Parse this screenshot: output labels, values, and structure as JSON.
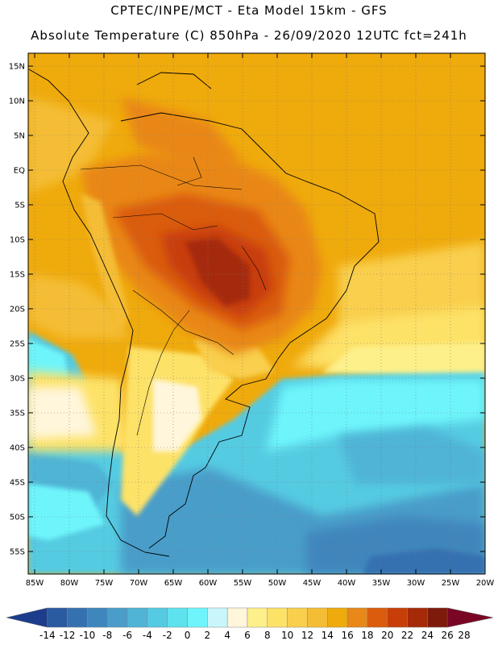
{
  "header": {
    "line1": "CPTEC/INPE/MCT -  Eta Model 15km - GFS",
    "line2": "Absolute Temperature (C) 850hPa - 26/09/2020 12UTC fct=241h"
  },
  "axes": {
    "lon_labels": [
      "85W",
      "80W",
      "75W",
      "70W",
      "65W",
      "60W",
      "55W",
      "50W",
      "45W",
      "40W",
      "35W",
      "30W",
      "25W",
      "20W"
    ],
    "lat_labels": [
      "15N",
      "10N",
      "5N",
      "EQ",
      "5S",
      "10S",
      "15S",
      "20S",
      "25S",
      "30S",
      "35S",
      "40S",
      "45S",
      "50S",
      "55S"
    ]
  },
  "legend": {
    "colors": [
      "#1c3d8c",
      "#2a5aa0",
      "#3571b0",
      "#3f86bd",
      "#4a9dc9",
      "#4fb4d6",
      "#54cbe2",
      "#5ee2ee",
      "#6ef5fb",
      "#c8f6fb",
      "#fff6dc",
      "#fdf08a",
      "#fde268",
      "#f9cf4e",
      "#f4bd36",
      "#efaa0c",
      "#e98718",
      "#da5c0c",
      "#c83e08",
      "#a52a08",
      "#7e1a0c",
      "#7a0624"
    ],
    "labels": [
      "-14",
      "-12",
      "-10",
      "-8",
      "-6",
      "-4",
      "-2",
      "0",
      "2",
      "4",
      "6",
      "8",
      "10",
      "12",
      "14",
      "16",
      "18",
      "20",
      "22",
      "24",
      "26",
      "28"
    ]
  }
}
